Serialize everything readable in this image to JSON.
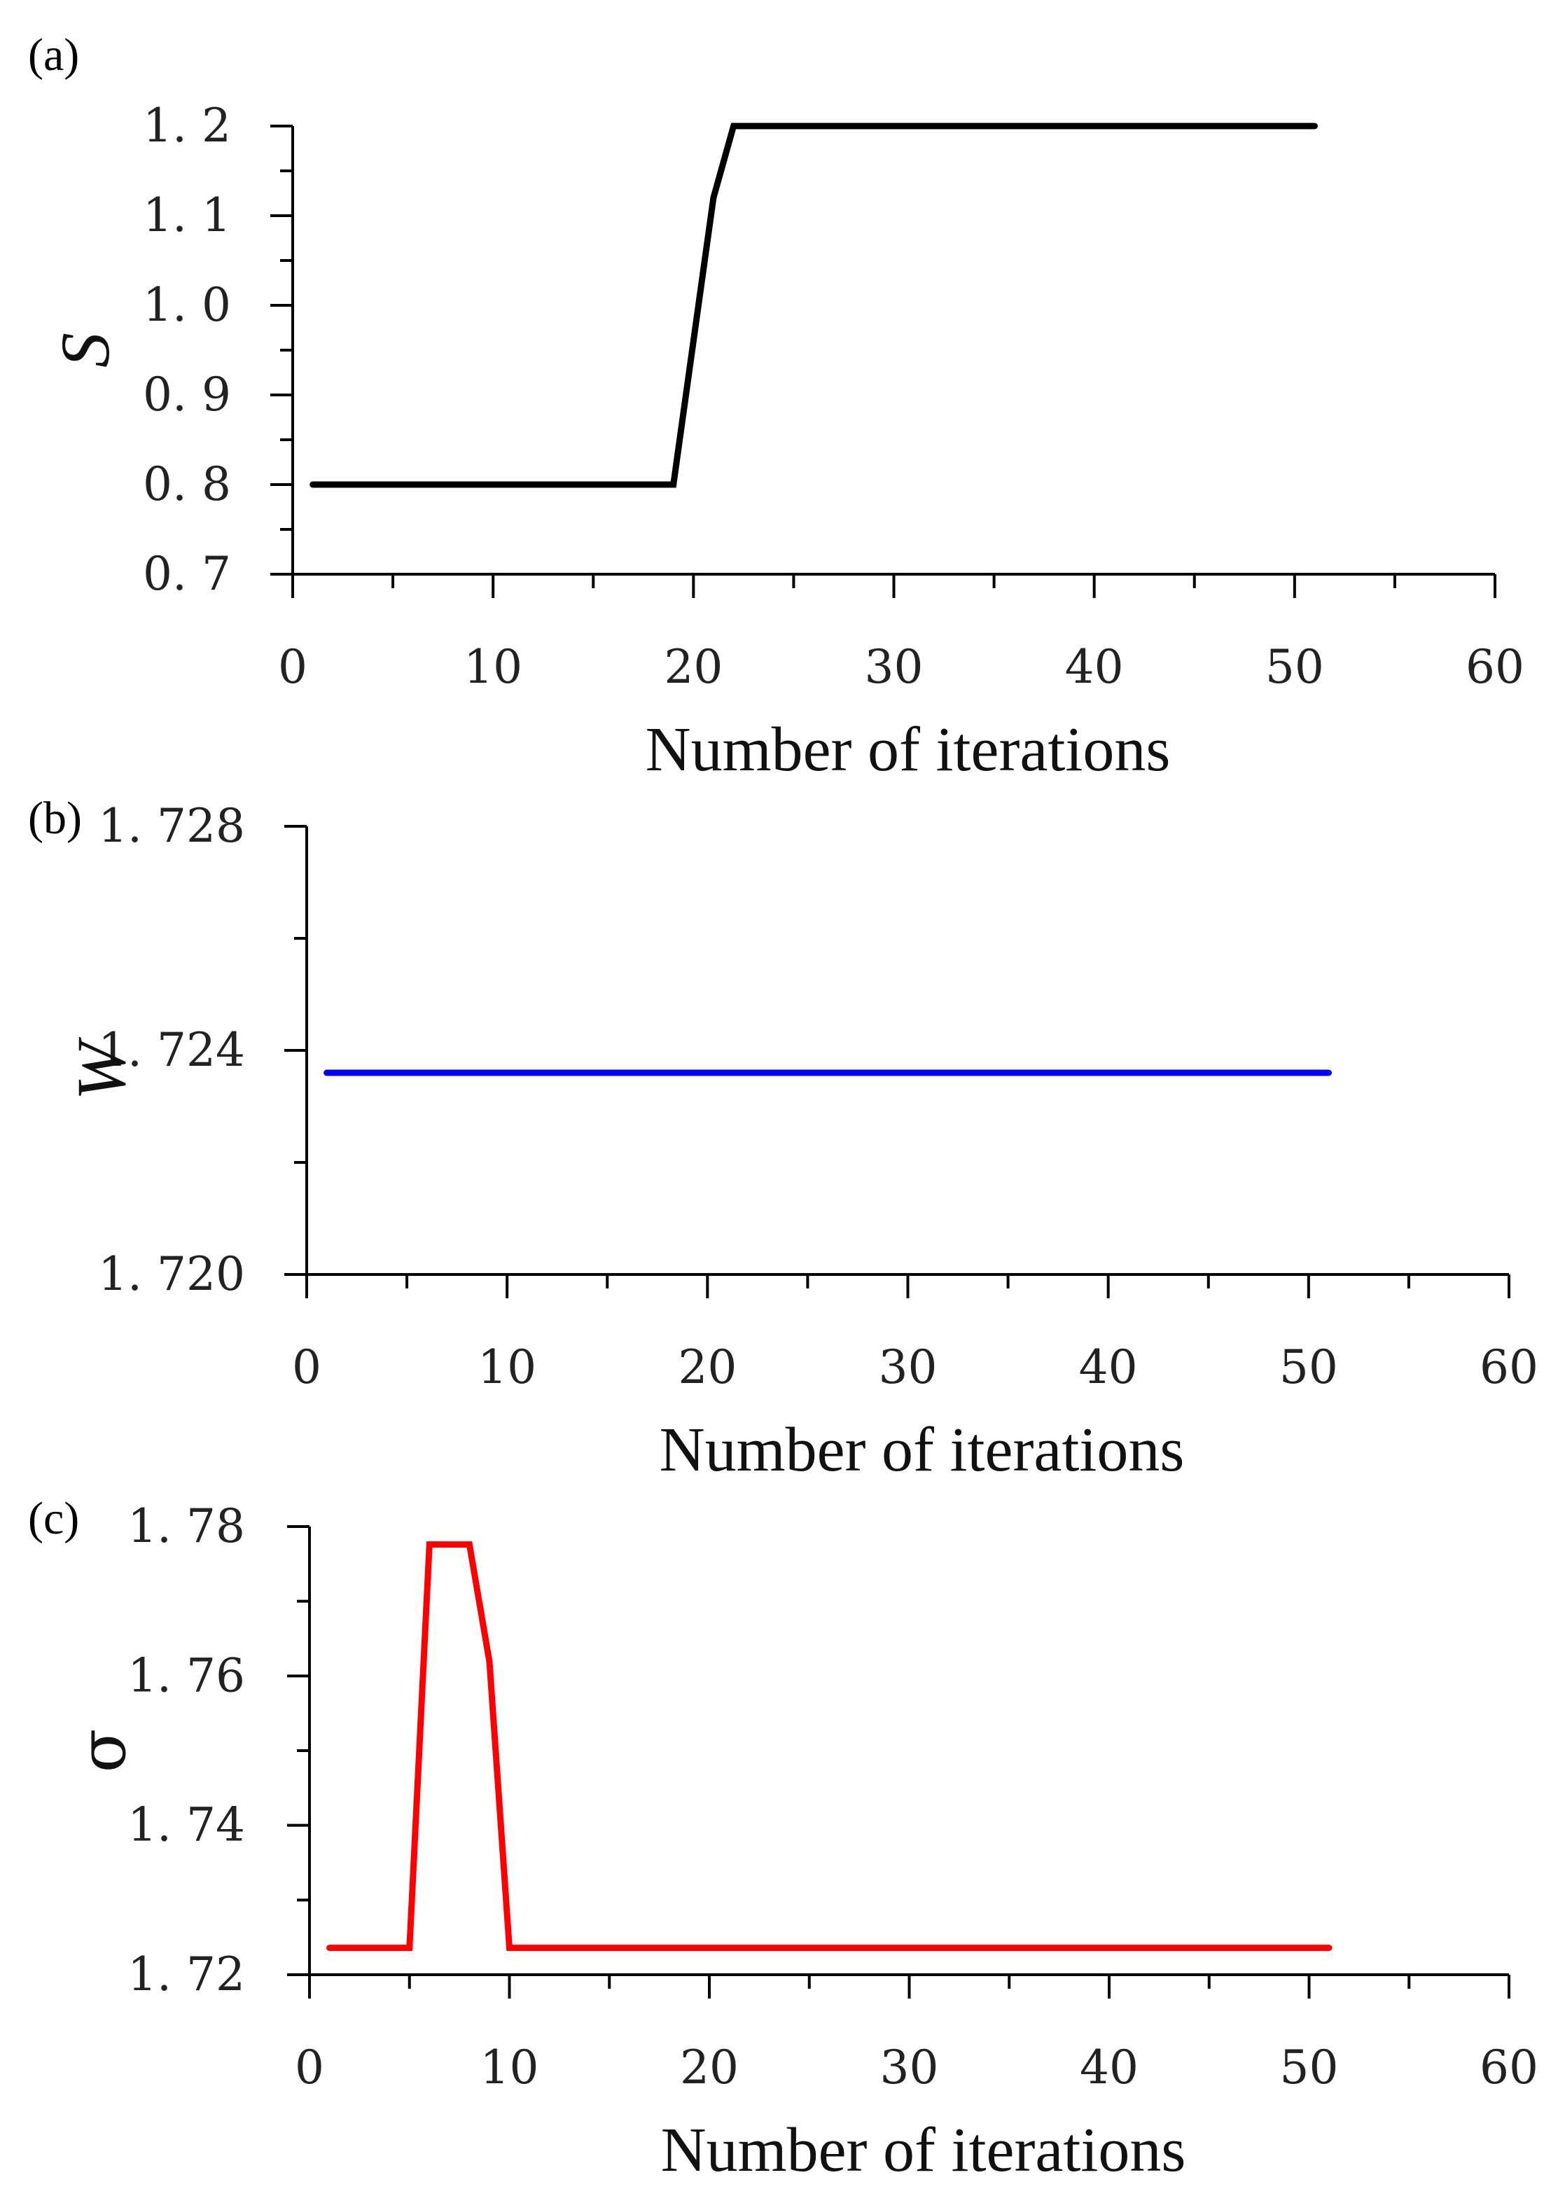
{
  "chart_data": [
    {
      "type": "line",
      "panel_label": "(a)",
      "title": "",
      "xlabel": "Number of iterations",
      "ylabel": "S",
      "xlim": [
        0,
        60
      ],
      "ylim": [
        0.7,
        1.2
      ],
      "x_ticks": [
        0,
        10,
        20,
        30,
        40,
        50,
        60
      ],
      "x_tick_labels": [
        "0",
        "10",
        "20",
        "30",
        "40",
        "50",
        "60"
      ],
      "y_ticks": [
        0.7,
        0.8,
        0.9,
        1.0,
        1.1,
        1.2
      ],
      "y_tick_labels": [
        "0. 7",
        "0. 8",
        "0. 9",
        "1. 0",
        "1. 1",
        "1. 2"
      ],
      "grid": false,
      "series": [
        {
          "color": "#000000",
          "x": [
            1,
            19,
            21,
            22,
            51
          ],
          "y": [
            0.8,
            0.8,
            1.12,
            1.2,
            1.2
          ]
        }
      ]
    },
    {
      "type": "line",
      "panel_label": "(b)",
      "title": "",
      "xlabel": "Number of iterations",
      "ylabel": "W",
      "xlim": [
        0,
        60
      ],
      "ylim": [
        1.72,
        1.728
      ],
      "x_ticks": [
        0,
        10,
        20,
        30,
        40,
        50,
        60
      ],
      "x_tick_labels": [
        "0",
        "10",
        "20",
        "30",
        "40",
        "50",
        "60"
      ],
      "y_ticks": [
        1.72,
        1.724,
        1.728
      ],
      "y_tick_labels": [
        "1. 720",
        "1. 724",
        "1. 728"
      ],
      "grid": false,
      "series": [
        {
          "color": "#0000ff",
          "x": [
            1,
            51
          ],
          "y": [
            1.7236,
            1.7236
          ]
        }
      ]
    },
    {
      "type": "line",
      "panel_label": "(c)",
      "title": "",
      "xlabel": "Number of iterations",
      "ylabel": "σ",
      "xlim": [
        0,
        60
      ],
      "ylim": [
        1.72,
        1.78
      ],
      "x_ticks": [
        0,
        10,
        20,
        30,
        40,
        50,
        60
      ],
      "x_tick_labels": [
        "0",
        "10",
        "20",
        "30",
        "40",
        "50",
        "60"
      ],
      "y_ticks": [
        1.72,
        1.74,
        1.76,
        1.78
      ],
      "y_tick_labels": [
        "1. 72",
        "1. 74",
        "1. 76",
        "1. 78"
      ],
      "grid": false,
      "series": [
        {
          "color": "#ff0000",
          "x": [
            1,
            5,
            6,
            8,
            9,
            10,
            51
          ],
          "y": [
            1.7236,
            1.7236,
            1.7776,
            1.7776,
            1.7619,
            1.7236,
            1.7236
          ]
        }
      ]
    }
  ]
}
